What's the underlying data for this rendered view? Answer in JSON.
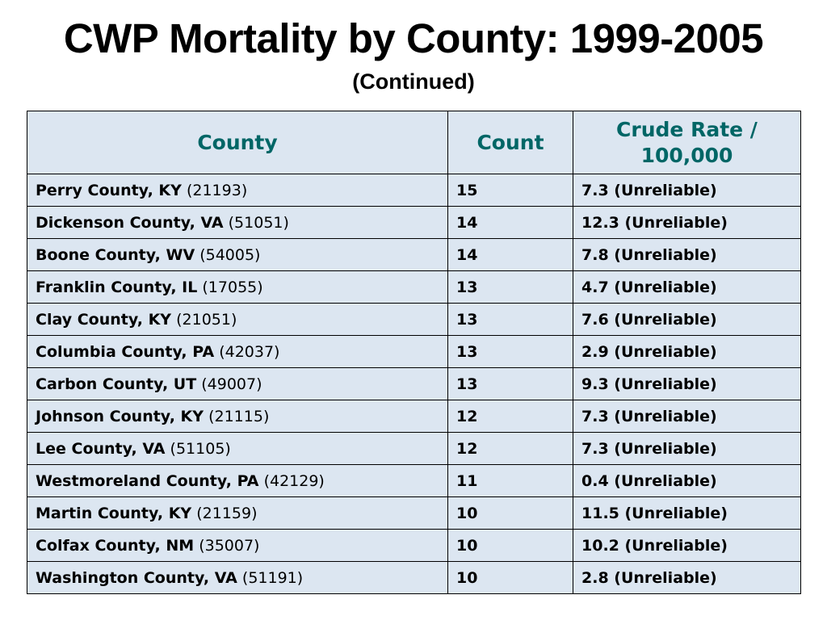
{
  "header": {
    "title": "CWP Mortality by County: 1999-2005",
    "subtitle": "(Continued)"
  },
  "table": {
    "columns": [
      "County",
      "Count",
      "Crude Rate / 100,000"
    ],
    "rows": [
      {
        "county": "Perry County, KY",
        "fips": "(21193)",
        "count": "15",
        "rate": "7.3 (Unreliable)"
      },
      {
        "county": "Dickenson County, VA",
        "fips": "(51051)",
        "count": "14",
        "rate": "12.3 (Unreliable)"
      },
      {
        "county": "Boone County, WV",
        "fips": "(54005)",
        "count": "14",
        "rate": "7.8 (Unreliable)"
      },
      {
        "county": "Franklin County, IL",
        "fips": "(17055)",
        "count": "13",
        "rate": "4.7 (Unreliable)"
      },
      {
        "county": "Clay County, KY",
        "fips": "(21051)",
        "count": "13",
        "rate": "7.6 (Unreliable)"
      },
      {
        "county": "Columbia County, PA",
        "fips": "(42037)",
        "count": "13",
        "rate": "2.9 (Unreliable)"
      },
      {
        "county": "Carbon County, UT",
        "fips": "(49007)",
        "count": "13",
        "rate": "9.3 (Unreliable)"
      },
      {
        "county": "Johnson County, KY",
        "fips": "(21115)",
        "count": "12",
        "rate": "7.3 (Unreliable)"
      },
      {
        "county": "Lee County, VA",
        "fips": "(51105)",
        "count": "12",
        "rate": "7.3 (Unreliable)"
      },
      {
        "county": "Westmoreland County, PA",
        "fips": "(42129)",
        "count": "11",
        "rate": "0.4 (Unreliable)"
      },
      {
        "county": "Martin County, KY",
        "fips": "(21159)",
        "count": "10",
        "rate": "11.5 (Unreliable)"
      },
      {
        "county": "Colfax County, NM",
        "fips": "(35007)",
        "count": "10",
        "rate": "10.2 (Unreliable)"
      },
      {
        "county": "Washington County, VA",
        "fips": "(51191)",
        "count": "10",
        "rate": "2.8 (Unreliable)"
      }
    ]
  },
  "colors": {
    "header_text": "#006666",
    "cell_background": "#dce6f1",
    "border": "#000000"
  }
}
